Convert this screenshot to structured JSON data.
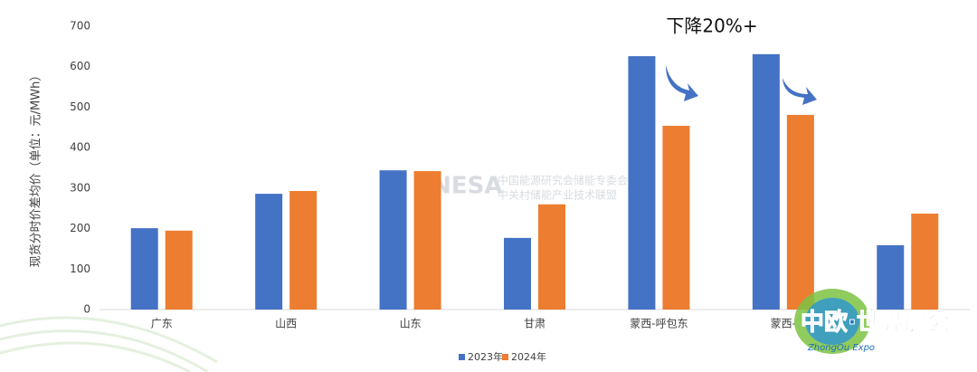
{
  "chart_data": {
    "type": "bar",
    "y_label": "现货分时价差均价（单位：元/MWh）",
    "annotation": "下降20%+",
    "categories": [
      "广东",
      "山西",
      "山东",
      "甘肃",
      "蒙西-呼包东",
      "蒙西-",
      null
    ],
    "series": [
      {
        "name": "2023年",
        "color": "#4472c4",
        "values": [
          201,
          286,
          344,
          177,
          626,
          631,
          159
        ]
      },
      {
        "name": "2024年",
        "color": "#ed7d31",
        "values": [
          195,
          293,
          342,
          260,
          454,
          481,
          237
        ]
      }
    ],
    "ylim": [
      0,
      700
    ],
    "yticks": [
      0,
      100,
      200,
      300,
      400,
      500,
      600,
      700
    ],
    "grid": false,
    "legend": "bottom"
  },
  "watermark": {
    "brand": "CNESA",
    "line1": "中国能源研究会储能专委会",
    "line2": "中关村储能产业技术联盟"
  },
  "logo": {
    "title": "中欧·世界展会",
    "subtitle": "ZhongOu Expo"
  }
}
